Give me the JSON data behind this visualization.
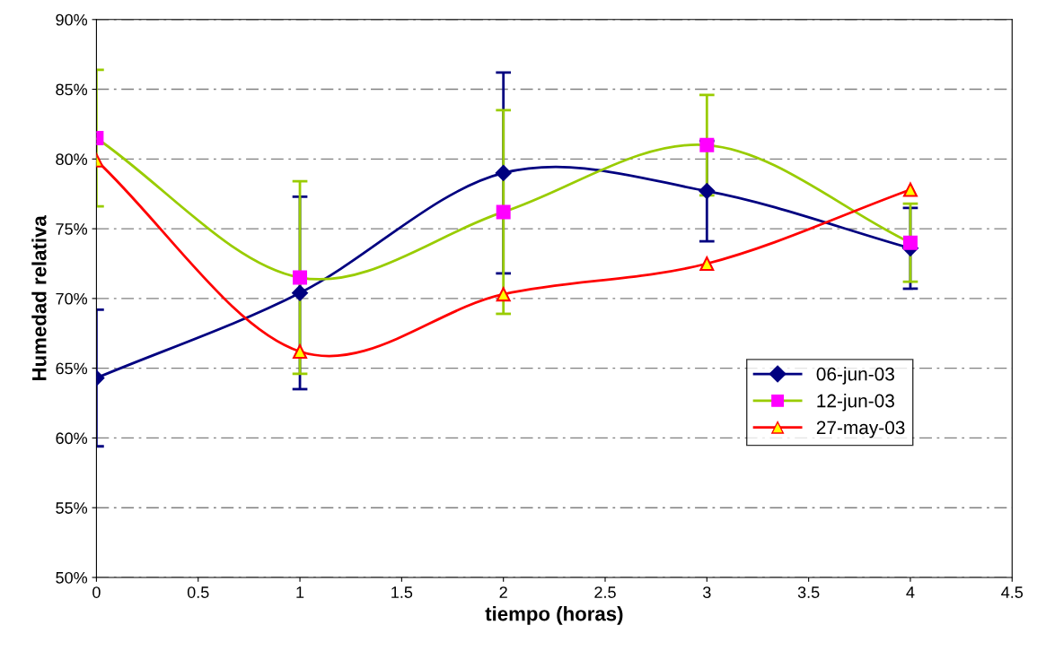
{
  "chart_data": {
    "type": "line",
    "xlabel": "tiempo (horas)",
    "ylabel": "Humedad relativa",
    "xlim": [
      0,
      4.5
    ],
    "xticks": [
      0,
      0.5,
      1,
      1.5,
      2,
      2.5,
      3,
      3.5,
      4,
      4.5
    ],
    "ylim": [
      50,
      90
    ],
    "yticks": [
      {
        "value": 50,
        "label": "50%"
      },
      {
        "value": 55,
        "label": "55%"
      },
      {
        "value": 60,
        "label": "60%"
      },
      {
        "value": 65,
        "label": "65%"
      },
      {
        "value": 70,
        "label": "70%"
      },
      {
        "value": 75,
        "label": "75%"
      },
      {
        "value": 80,
        "label": "80%"
      },
      {
        "value": 85,
        "label": "85%"
      },
      {
        "value": 90,
        "label": "90%"
      }
    ],
    "grid": "y",
    "legend": "right",
    "line_style": "solid",
    "x": [
      0,
      1,
      2,
      3,
      4
    ],
    "series": [
      {
        "name": "06-jun-03",
        "color": "#000080",
        "marker": "diamond",
        "colors": [
          "#000080",
          "#000080",
          "#000080",
          "#000080",
          "#000080"
        ],
        "values": [
          64.3,
          70.4,
          79.0,
          77.7,
          73.6
        ],
        "errors": [
          4.9,
          6.9,
          7.2,
          3.6,
          2.9
        ]
      },
      {
        "name": "12-jun-03",
        "color": "#99cc00",
        "marker": "square",
        "colors": [
          "#ff00ff",
          "#ff00ff",
          "#ff00ff",
          "#ff00ff",
          "#ff00ff"
        ],
        "values": [
          81.5,
          71.5,
          76.2,
          81.0,
          74.0
        ],
        "errors": [
          4.9,
          6.9,
          7.3,
          3.6,
          2.8
        ]
      },
      {
        "name": "27-may-03",
        "color": "#ff0000",
        "marker": "triangle",
        "colors": [
          "#ffff00",
          "#ffff00",
          "#ffff00",
          "#ffff00",
          "#ffff00"
        ],
        "values": [
          79.9,
          66.2,
          70.3,
          72.5,
          77.8
        ]
      }
    ]
  }
}
